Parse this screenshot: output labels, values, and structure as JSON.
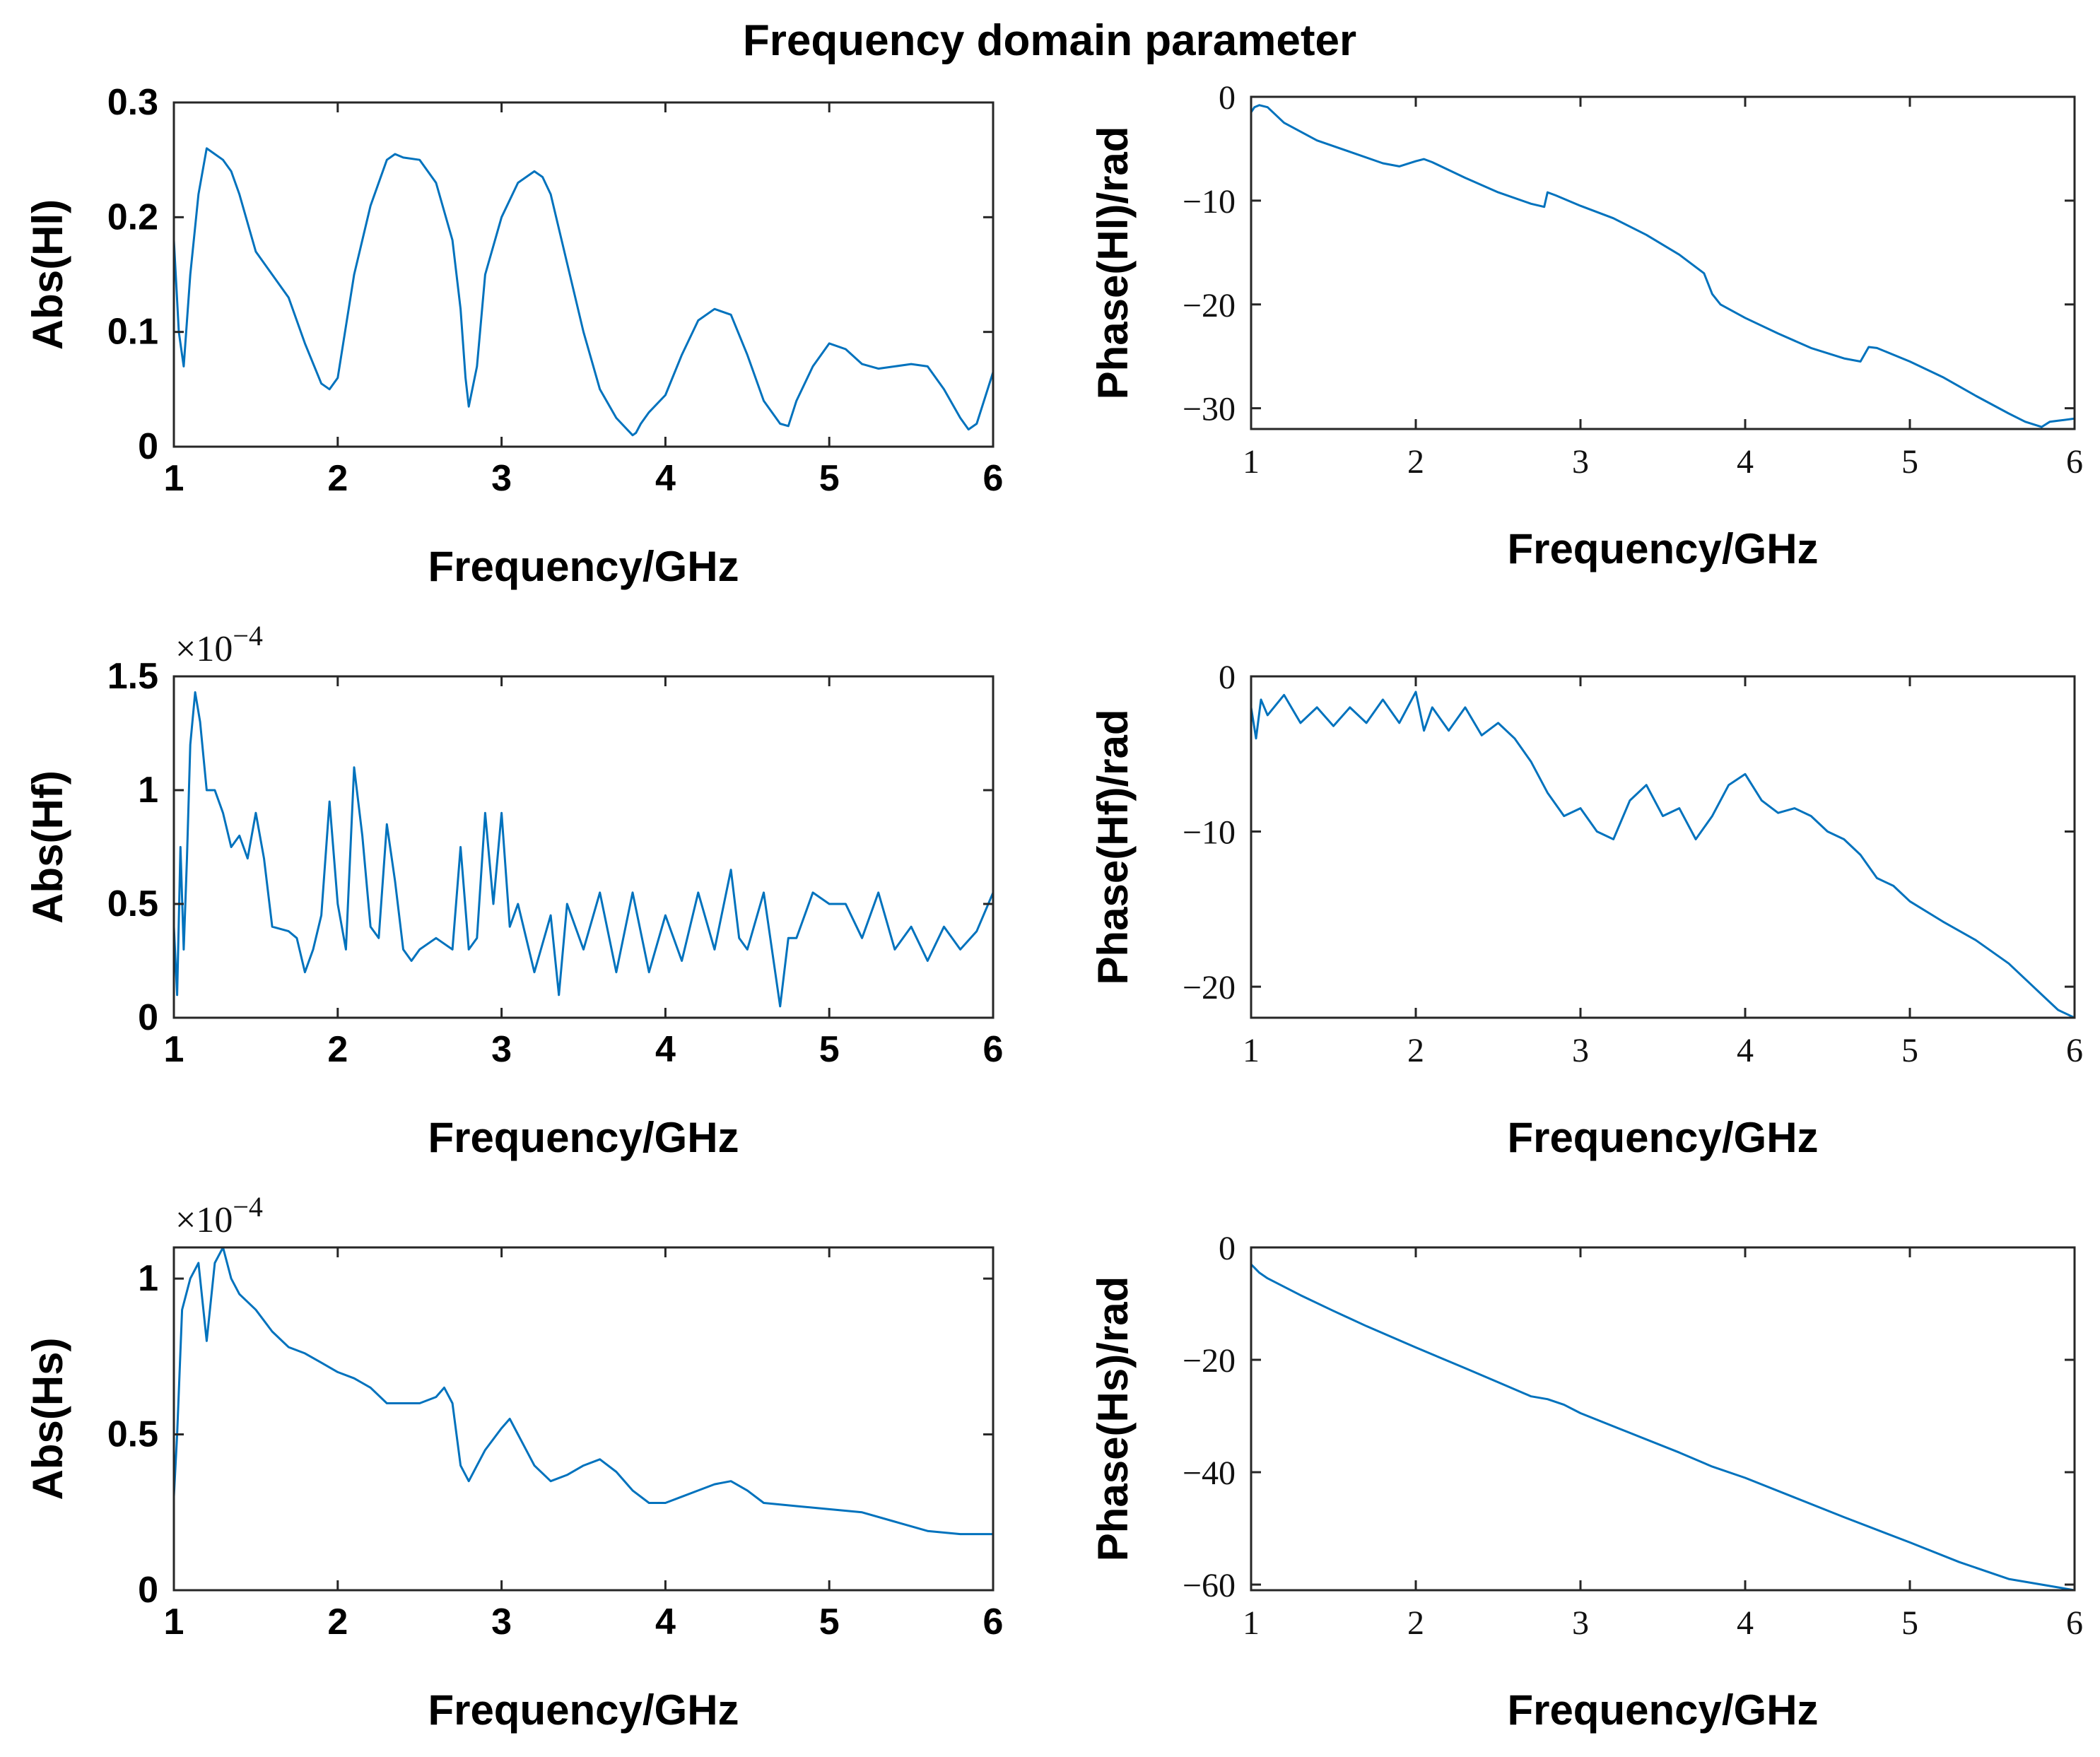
{
  "figure": {
    "title": "Frequency domain parameter",
    "line_color": "#0072BD"
  },
  "chart_data": [
    {
      "type": "line",
      "title": "",
      "xlabel": "Frequency/GHz",
      "ylabel": "Abs(Hl)",
      "xlim": [
        1,
        6
      ],
      "ylim": [
        0,
        0.3
      ],
      "xticks": [
        1,
        2,
        3,
        4,
        5,
        6
      ],
      "yticks": [
        0,
        0.1,
        0.2,
        0.3
      ],
      "xtick_labels": [
        "1",
        "2",
        "3",
        "4",
        "5",
        "6"
      ],
      "ytick_labels": [
        "0",
        "0.1",
        "0.2",
        "0.3"
      ],
      "exponent_label": "",
      "grid": false,
      "series": [
        {
          "name": "Abs(Hl)",
          "x": [
            1.0,
            1.03,
            1.06,
            1.1,
            1.15,
            1.2,
            1.25,
            1.3,
            1.35,
            1.4,
            1.5,
            1.6,
            1.7,
            1.8,
            1.9,
            1.95,
            2.0,
            2.1,
            2.2,
            2.3,
            2.35,
            2.4,
            2.5,
            2.6,
            2.7,
            2.75,
            2.78,
            2.8,
            2.85,
            2.9,
            3.0,
            3.1,
            3.2,
            3.25,
            3.3,
            3.4,
            3.5,
            3.6,
            3.7,
            3.8,
            3.82,
            3.85,
            3.9,
            4.0,
            4.1,
            4.2,
            4.3,
            4.4,
            4.5,
            4.6,
            4.7,
            4.75,
            4.8,
            4.9,
            5.0,
            5.1,
            5.2,
            5.3,
            5.4,
            5.5,
            5.6,
            5.7,
            5.8,
            5.85,
            5.9,
            6.0
          ],
          "values": [
            0.18,
            0.1,
            0.07,
            0.15,
            0.22,
            0.26,
            0.255,
            0.25,
            0.24,
            0.22,
            0.17,
            0.15,
            0.13,
            0.09,
            0.055,
            0.05,
            0.06,
            0.15,
            0.21,
            0.25,
            0.255,
            0.252,
            0.25,
            0.23,
            0.18,
            0.12,
            0.06,
            0.035,
            0.07,
            0.15,
            0.2,
            0.23,
            0.24,
            0.235,
            0.22,
            0.16,
            0.1,
            0.05,
            0.025,
            0.01,
            0.012,
            0.02,
            0.03,
            0.045,
            0.08,
            0.11,
            0.12,
            0.115,
            0.08,
            0.04,
            0.02,
            0.018,
            0.04,
            0.07,
            0.09,
            0.085,
            0.072,
            0.068,
            0.07,
            0.072,
            0.07,
            0.05,
            0.025,
            0.015,
            0.02,
            0.065
          ]
        }
      ]
    },
    {
      "type": "line",
      "title": "",
      "xlabel": "Frequency/GHz",
      "ylabel": "Phase(Hl)/rad",
      "xlim": [
        1,
        6
      ],
      "ylim": [
        -32,
        0
      ],
      "xticks": [
        1,
        2,
        3,
        4,
        5,
        6
      ],
      "yticks": [
        -30,
        -20,
        -10,
        0
      ],
      "xtick_labels": [
        "1",
        "2",
        "3",
        "4",
        "5",
        "6"
      ],
      "ytick_labels": [
        "−30",
        "−20",
        "−10",
        "0"
      ],
      "exponent_label": "",
      "grid": false,
      "series": [
        {
          "name": "Phase(Hl)",
          "x": [
            1.0,
            1.02,
            1.05,
            1.1,
            1.2,
            1.4,
            1.6,
            1.8,
            1.9,
            2.0,
            2.05,
            2.1,
            2.3,
            2.5,
            2.7,
            2.78,
            2.8,
            2.85,
            3.0,
            3.2,
            3.4,
            3.6,
            3.75,
            3.8,
            3.85,
            4.0,
            4.2,
            4.4,
            4.6,
            4.7,
            4.75,
            4.8,
            5.0,
            5.2,
            5.4,
            5.6,
            5.7,
            5.8,
            5.85,
            5.9,
            6.0
          ],
          "values": [
            -1.5,
            -1.0,
            -0.8,
            -1.0,
            -2.5,
            -4.2,
            -5.3,
            -6.4,
            -6.7,
            -6.2,
            -6.0,
            -6.3,
            -7.8,
            -9.2,
            -10.3,
            -10.6,
            -9.2,
            -9.5,
            -10.5,
            -11.7,
            -13.3,
            -15.2,
            -17.0,
            -19.0,
            -20.0,
            -21.3,
            -22.8,
            -24.2,
            -25.2,
            -25.5,
            -24.1,
            -24.2,
            -25.5,
            -27.0,
            -28.8,
            -30.5,
            -31.3,
            -31.8,
            -31.3,
            -31.2,
            -31.0
          ]
        }
      ]
    },
    {
      "type": "line",
      "title": "",
      "xlabel": "Frequency/GHz",
      "ylabel": "Abs(Hf)",
      "xlim": [
        1,
        6
      ],
      "ylim": [
        0,
        1.5
      ],
      "xticks": [
        1,
        2,
        3,
        4,
        5,
        6
      ],
      "yticks": [
        0,
        0.5,
        1,
        1.5
      ],
      "xtick_labels": [
        "1",
        "2",
        "3",
        "4",
        "5",
        "6"
      ],
      "ytick_labels": [
        "0",
        "0.5",
        "1",
        "1.5"
      ],
      "exponent_label": "×10−4",
      "grid": false,
      "series": [
        {
          "name": "Abs(Hf)",
          "x": [
            1.0,
            1.02,
            1.04,
            1.06,
            1.08,
            1.1,
            1.13,
            1.16,
            1.2,
            1.25,
            1.3,
            1.35,
            1.4,
            1.45,
            1.5,
            1.55,
            1.6,
            1.7,
            1.75,
            1.8,
            1.85,
            1.9,
            1.95,
            2.0,
            2.05,
            2.1,
            2.15,
            2.2,
            2.25,
            2.3,
            2.35,
            2.4,
            2.45,
            2.5,
            2.6,
            2.7,
            2.75,
            2.8,
            2.85,
            2.9,
            2.95,
            3.0,
            3.05,
            3.1,
            3.2,
            3.3,
            3.35,
            3.4,
            3.5,
            3.6,
            3.7,
            3.8,
            3.9,
            4.0,
            4.1,
            4.2,
            4.3,
            4.4,
            4.45,
            4.5,
            4.6,
            4.7,
            4.75,
            4.8,
            4.9,
            5.0,
            5.1,
            5.2,
            5.3,
            5.4,
            5.5,
            5.6,
            5.7,
            5.8,
            5.9,
            6.0
          ],
          "values": [
            0.4,
            0.1,
            0.75,
            0.3,
            0.7,
            1.2,
            1.43,
            1.3,
            1.0,
            1.0,
            0.9,
            0.75,
            0.8,
            0.7,
            0.9,
            0.7,
            0.4,
            0.38,
            0.35,
            0.2,
            0.3,
            0.45,
            0.95,
            0.5,
            0.3,
            1.1,
            0.8,
            0.4,
            0.35,
            0.85,
            0.6,
            0.3,
            0.25,
            0.3,
            0.35,
            0.3,
            0.75,
            0.3,
            0.35,
            0.9,
            0.5,
            0.9,
            0.4,
            0.5,
            0.2,
            0.45,
            0.1,
            0.5,
            0.3,
            0.55,
            0.2,
            0.55,
            0.2,
            0.45,
            0.25,
            0.55,
            0.3,
            0.65,
            0.35,
            0.3,
            0.55,
            0.05,
            0.35,
            0.35,
            0.55,
            0.5,
            0.5,
            0.35,
            0.55,
            0.3,
            0.4,
            0.25,
            0.4,
            0.3,
            0.38,
            0.55
          ]
        }
      ]
    },
    {
      "type": "line",
      "title": "",
      "xlabel": "Frequency/GHz",
      "ylabel": "Phase(Hf)/rad",
      "xlim": [
        1,
        6
      ],
      "ylim": [
        -22,
        0
      ],
      "xticks": [
        1,
        2,
        3,
        4,
        5,
        6
      ],
      "yticks": [
        -20,
        -10,
        0
      ],
      "xtick_labels": [
        "1",
        "2",
        "3",
        "4",
        "5",
        "6"
      ],
      "ytick_labels": [
        "−20",
        "−10",
        "0"
      ],
      "exponent_label": "",
      "grid": false,
      "series": [
        {
          "name": "Phase(Hf)",
          "x": [
            1.0,
            1.03,
            1.06,
            1.1,
            1.2,
            1.3,
            1.4,
            1.5,
            1.6,
            1.7,
            1.8,
            1.9,
            2.0,
            2.05,
            2.1,
            2.2,
            2.3,
            2.4,
            2.5,
            2.6,
            2.7,
            2.8,
            2.9,
            3.0,
            3.1,
            3.2,
            3.3,
            3.4,
            3.5,
            3.6,
            3.7,
            3.8,
            3.9,
            4.0,
            4.1,
            4.2,
            4.3,
            4.4,
            4.5,
            4.6,
            4.7,
            4.8,
            4.9,
            5.0,
            5.2,
            5.4,
            5.6,
            5.8,
            5.9,
            6.0
          ],
          "values": [
            -2.0,
            -4.0,
            -1.5,
            -2.5,
            -1.2,
            -3.0,
            -2.0,
            -3.2,
            -2.0,
            -3.0,
            -1.5,
            -3.0,
            -1.0,
            -3.5,
            -2.0,
            -3.5,
            -2.0,
            -3.8,
            -3.0,
            -4.0,
            -5.5,
            -7.5,
            -9.0,
            -8.5,
            -10.0,
            -10.5,
            -8.0,
            -7.0,
            -9.0,
            -8.5,
            -10.5,
            -9.0,
            -7.0,
            -6.3,
            -8.0,
            -8.8,
            -8.5,
            -9.0,
            -10.0,
            -10.5,
            -11.5,
            -13.0,
            -13.5,
            -14.5,
            -15.8,
            -17.0,
            -18.5,
            -20.5,
            -21.5,
            -22.0
          ]
        }
      ]
    },
    {
      "type": "line",
      "title": "",
      "xlabel": "Frequency/GHz",
      "ylabel": "Abs(Hs)",
      "xlim": [
        1,
        6
      ],
      "ylim": [
        0,
        1.1
      ],
      "xticks": [
        1,
        2,
        3,
        4,
        5,
        6
      ],
      "yticks": [
        0,
        0.5,
        1
      ],
      "xtick_labels": [
        "1",
        "2",
        "3",
        "4",
        "5",
        "6"
      ],
      "ytick_labels": [
        "0",
        "0.5",
        "1"
      ],
      "exponent_label": "×10−4",
      "grid": false,
      "series": [
        {
          "name": "Abs(Hs)",
          "x": [
            1.0,
            1.02,
            1.05,
            1.1,
            1.15,
            1.2,
            1.25,
            1.3,
            1.35,
            1.4,
            1.5,
            1.6,
            1.7,
            1.8,
            1.9,
            2.0,
            2.1,
            2.2,
            2.3,
            2.4,
            2.5,
            2.6,
            2.65,
            2.7,
            2.75,
            2.8,
            2.85,
            2.9,
            3.0,
            3.05,
            3.1,
            3.2,
            3.3,
            3.4,
            3.5,
            3.6,
            3.7,
            3.8,
            3.9,
            4.0,
            4.1,
            4.2,
            4.3,
            4.4,
            4.5,
            4.6,
            4.8,
            5.0,
            5.2,
            5.4,
            5.6,
            5.8,
            6.0
          ],
          "values": [
            0.3,
            0.5,
            0.9,
            1.0,
            1.05,
            0.8,
            1.05,
            1.1,
            1.0,
            0.95,
            0.9,
            0.83,
            0.78,
            0.76,
            0.73,
            0.7,
            0.68,
            0.65,
            0.6,
            0.6,
            0.6,
            0.62,
            0.65,
            0.6,
            0.4,
            0.35,
            0.4,
            0.45,
            0.52,
            0.55,
            0.5,
            0.4,
            0.35,
            0.37,
            0.4,
            0.42,
            0.38,
            0.32,
            0.28,
            0.28,
            0.3,
            0.32,
            0.34,
            0.35,
            0.32,
            0.28,
            0.27,
            0.26,
            0.25,
            0.22,
            0.19,
            0.18,
            0.18
          ]
        }
      ]
    },
    {
      "type": "line",
      "title": "",
      "xlabel": "Frequency/GHz",
      "ylabel": "Phase(Hs)/rad",
      "xlim": [
        1,
        6
      ],
      "ylim": [
        -61,
        0
      ],
      "xticks": [
        1,
        2,
        3,
        4,
        5,
        6
      ],
      "yticks": [
        -60,
        -40,
        -20,
        0
      ],
      "xtick_labels": [
        "1",
        "2",
        "3",
        "4",
        "5",
        "6"
      ],
      "ytick_labels": [
        "−60",
        "−40",
        "−20",
        "0"
      ],
      "exponent_label": "",
      "grid": false,
      "series": [
        {
          "name": "Phase(Hs)",
          "x": [
            1.0,
            1.05,
            1.1,
            1.3,
            1.5,
            1.7,
            2.0,
            2.3,
            2.5,
            2.7,
            2.8,
            2.9,
            3.0,
            3.3,
            3.6,
            3.8,
            4.0,
            4.3,
            4.6,
            5.0,
            5.3,
            5.6,
            5.9,
            6.0
          ],
          "values": [
            -3.0,
            -4.5,
            -5.5,
            -8.5,
            -11.3,
            -14.0,
            -17.8,
            -21.5,
            -24.0,
            -26.5,
            -27.0,
            -28.0,
            -29.5,
            -33.0,
            -36.5,
            -39.0,
            -41.0,
            -44.5,
            -48.0,
            -52.5,
            -56.0,
            -59.0,
            -60.5,
            -61.0
          ]
        }
      ]
    }
  ]
}
